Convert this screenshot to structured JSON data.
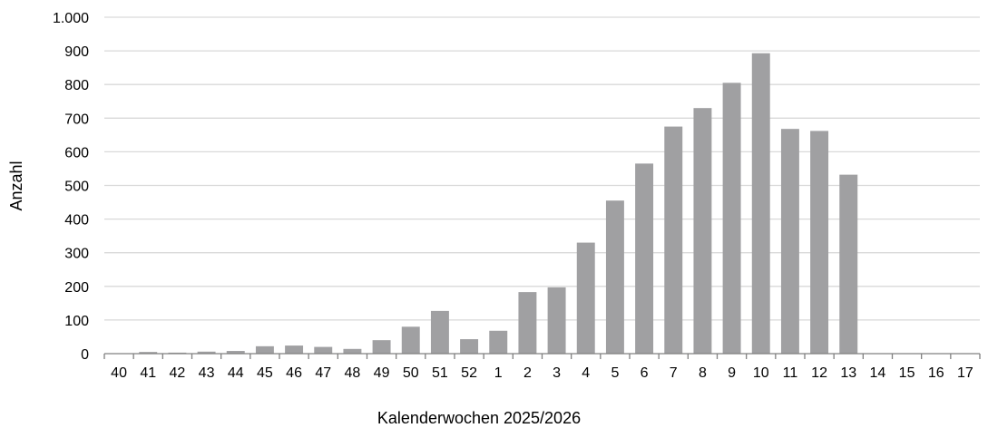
{
  "chart_data": {
    "type": "bar",
    "xlabel": "Kalenderwochen 2025/2026",
    "ylabel": "Anzahl",
    "ylim": [
      0,
      1000
    ],
    "yticks": [
      0,
      100,
      200,
      300,
      400,
      500,
      600,
      700,
      800,
      900,
      1000
    ],
    "ytick_labels": [
      "0",
      "100",
      "200",
      "300",
      "400",
      "500",
      "600",
      "700",
      "800",
      "900",
      "1.000"
    ],
    "grid": true,
    "bar_color": "#a0a0a2",
    "categories": [
      "40",
      "41",
      "42",
      "43",
      "44",
      "45",
      "46",
      "47",
      "48",
      "49",
      "50",
      "51",
      "52",
      "1",
      "2",
      "3",
      "4",
      "5",
      "6",
      "7",
      "8",
      "9",
      "10",
      "11",
      "12",
      "13",
      "14",
      "15",
      "16",
      "17"
    ],
    "values": [
      0,
      5,
      3,
      6,
      8,
      22,
      24,
      20,
      14,
      40,
      80,
      127,
      43,
      68,
      183,
      197,
      330,
      455,
      565,
      675,
      730,
      805,
      893,
      668,
      662,
      532,
      0,
      0,
      0,
      0
    ]
  }
}
